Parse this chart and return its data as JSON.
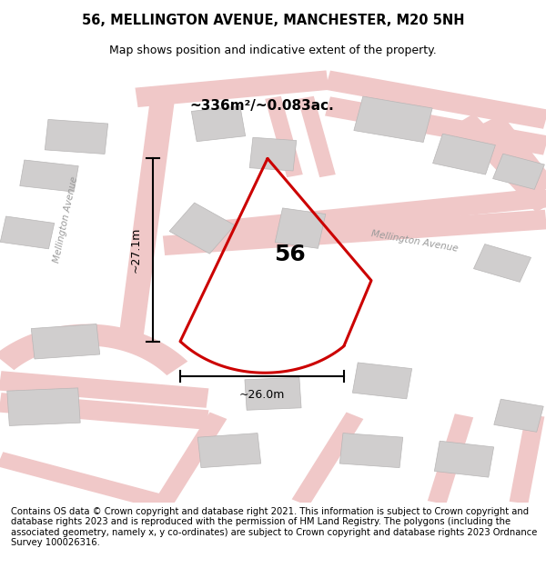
{
  "title": "56, MELLINGTON AVENUE, MANCHESTER, M20 5NH",
  "subtitle": "Map shows position and indicative extent of the property.",
  "footer": "Contains OS data © Crown copyright and database right 2021. This information is subject to Crown copyright and database rights 2023 and is reproduced with the permission of HM Land Registry. The polygons (including the associated geometry, namely x, y co-ordinates) are subject to Crown copyright and database rights 2023 Ordnance Survey 100026316.",
  "map_bg": "#f2f0f0",
  "road_color": "#f0c8c8",
  "road_color2": "#e8b0b0",
  "building_color": "#d6d4d4",
  "building_edge": "#bbbbbb",
  "plot_color_red": "#cc0000",
  "plot_label": "56",
  "area_label": "~336m²/~0.083ac.",
  "width_label": "~26.0m",
  "height_label": "~27.1m",
  "road_label_left": "Mellington Avenue",
  "road_label_right": "Mellington Avenue",
  "title_fontsize": 10.5,
  "subtitle_fontsize": 9,
  "footer_fontsize": 7.2
}
